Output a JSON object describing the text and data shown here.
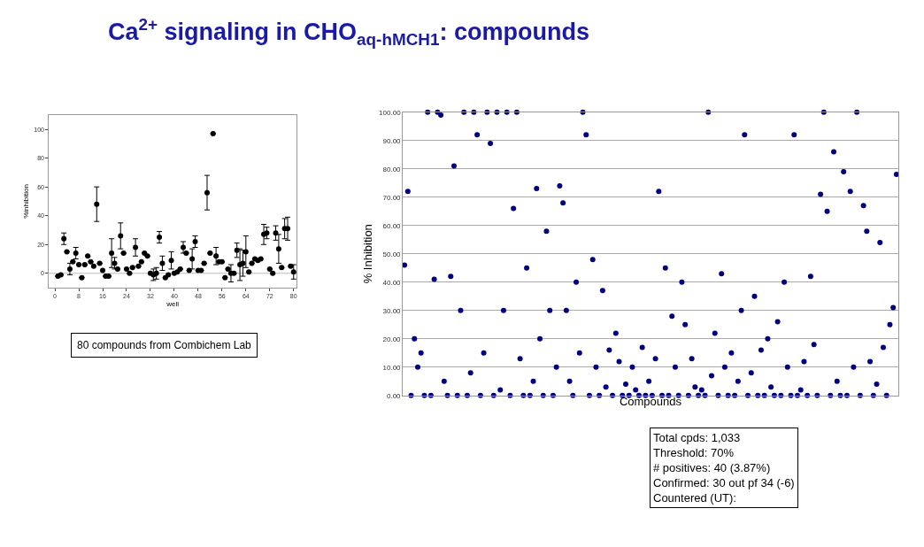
{
  "chart_data": [
    {
      "type": "scatter",
      "title": "Ca$^{2+}$ signaling in CHO$_{aq-hMCH1}$: compounds",
      "xlabel": "well",
      "ylabel": "%inhibition",
      "marker": "circle",
      "x": [
        1,
        2,
        3,
        4,
        5,
        6,
        7,
        8,
        9,
        10,
        11,
        12,
        13,
        14,
        15,
        16,
        17,
        18,
        19,
        20,
        21,
        22,
        23,
        24,
        25,
        26,
        27,
        28,
        29,
        30,
        31,
        32,
        33,
        34,
        35,
        36,
        37,
        38,
        39,
        40,
        41,
        42,
        43,
        44,
        45,
        46,
        47,
        48,
        49,
        50,
        51,
        52,
        53,
        54,
        55,
        56,
        57,
        58,
        59,
        60,
        61,
        62,
        63,
        64,
        65,
        66,
        67,
        68,
        69,
        70,
        71,
        72,
        73,
        74,
        75,
        76,
        77,
        78,
        79,
        80
      ],
      "series": [
        {
          "color": "#000000",
          "values": [
            -2,
            -1,
            24,
            15,
            3,
            8,
            14,
            6,
            -3,
            6,
            12,
            8,
            5,
            48,
            7,
            2,
            -2,
            -2,
            14,
            7,
            3,
            26,
            14,
            3,
            0,
            4,
            18,
            5,
            8,
            14,
            12,
            0,
            -1,
            0,
            25,
            7,
            -3,
            -1,
            9,
            0,
            1,
            3,
            18,
            14,
            2,
            10,
            22,
            2,
            2,
            7,
            56,
            14,
            97,
            12,
            8,
            8,
            -3,
            3,
            0,
            0,
            16,
            6,
            7,
            15,
            1,
            7,
            10,
            9,
            10,
            27,
            28,
            3,
            0,
            28,
            17,
            4,
            31,
            31,
            5,
            1
          ],
          "errors": [
            null,
            null,
            4,
            null,
            4,
            null,
            4,
            null,
            null,
            null,
            null,
            null,
            null,
            12,
            null,
            null,
            null,
            null,
            10,
            4,
            null,
            9,
            null,
            null,
            null,
            null,
            6,
            null,
            null,
            null,
            null,
            null,
            4,
            4,
            4,
            5,
            null,
            null,
            6,
            null,
            null,
            null,
            4,
            null,
            null,
            7,
            4,
            null,
            null,
            null,
            12,
            null,
            null,
            6,
            null,
            null,
            null,
            null,
            6,
            null,
            5,
            11,
            9,
            11,
            null,
            null,
            null,
            null,
            null,
            7,
            4,
            null,
            null,
            5,
            10,
            null,
            7,
            8,
            null,
            5
          ]
        }
      ],
      "xlim": [
        -2,
        81
      ],
      "xticks": [
        0,
        8,
        16,
        24,
        32,
        40,
        48,
        56,
        64,
        72,
        80
      ],
      "ylim": [
        -10,
        110
      ],
      "yticks": [
        0,
        20,
        40,
        60,
        80,
        100
      ],
      "ref_lines": [
        {
          "axis": "y",
          "value": 0,
          "color": "#bbbbbb"
        }
      ],
      "annotations": [
        "80 compounds from Combichem Lab"
      ]
    },
    {
      "type": "scatter",
      "xlabel": "Compounds",
      "ylabel": "% Inhibition",
      "marker": "circle",
      "grid": "y",
      "tick_labels": "y",
      "categories": [
        null,
        null,
        null,
        null,
        null,
        null,
        null,
        null,
        null,
        null,
        null,
        null,
        null,
        null,
        null,
        null,
        null,
        null,
        null,
        null,
        null,
        null,
        null,
        null,
        null,
        null,
        null,
        null,
        null,
        null,
        null,
        null,
        null,
        null,
        null,
        null,
        null,
        null,
        null,
        null,
        null,
        null,
        null,
        null,
        null,
        null,
        null,
        null,
        null,
        null,
        null,
        null,
        null,
        null,
        null,
        null,
        null,
        null,
        null,
        null,
        null,
        null,
        null,
        null,
        null,
        null,
        null,
        null,
        null,
        null,
        null,
        null,
        null,
        null,
        null,
        null,
        null,
        null,
        null,
        null,
        null,
        null,
        null,
        null,
        null,
        null,
        null,
        null,
        null,
        null,
        null,
        null,
        null,
        null,
        null,
        null,
        null,
        null,
        null,
        null,
        null,
        null,
        null,
        null,
        null,
        null,
        null,
        null,
        null,
        null,
        null,
        null,
        null,
        null,
        null,
        null,
        null,
        null,
        null,
        null,
        null,
        null,
        null,
        null,
        null,
        null,
        null,
        null,
        null,
        null,
        null,
        null,
        null,
        null,
        null,
        null,
        null,
        null,
        null,
        null,
        null,
        null,
        null,
        null,
        null,
        null,
        null,
        null,
        null,
        null
      ],
      "series": [
        {
          "color": "#000080",
          "values": [
            46,
            72,
            0,
            20,
            10,
            15,
            0,
            100,
            0,
            41,
            100,
            99,
            5,
            0,
            42,
            81,
            0,
            30,
            100,
            0,
            8,
            100,
            92,
            0,
            15,
            100,
            89,
            0,
            100,
            2,
            30,
            100,
            0,
            66,
            100,
            13,
            0,
            45,
            0,
            5,
            73,
            20,
            0,
            58,
            30,
            0,
            10,
            74,
            68,
            30,
            5,
            0,
            40,
            15,
            100,
            92,
            0,
            48,
            10,
            0,
            37,
            3,
            16,
            0,
            22,
            12,
            0,
            4,
            0,
            10,
            2,
            0,
            17,
            0,
            5,
            0,
            13,
            72,
            0,
            45,
            0,
            28,
            10,
            0,
            40,
            25,
            0,
            13,
            3,
            0,
            2,
            0,
            100,
            7,
            22,
            0,
            43,
            10,
            0,
            15,
            0,
            5,
            30,
            92,
            0,
            8,
            35,
            0,
            16,
            0,
            20,
            3,
            0,
            26,
            0,
            40,
            10,
            0,
            92,
            0,
            2,
            12,
            0,
            42,
            18,
            0,
            71,
            100,
            65,
            0,
            86,
            5,
            0,
            79,
            0,
            72,
            10,
            100,
            0,
            67,
            58,
            12,
            0,
            4,
            54,
            17,
            0,
            25,
            31,
            78
          ]
        }
      ],
      "ylim": [
        0,
        100
      ],
      "yticks": [
        {
          "value": 0,
          "label": "0.00"
        },
        {
          "value": 10,
          "label": "10.00"
        },
        {
          "value": 20,
          "label": "20.00"
        },
        {
          "value": 30,
          "label": "30.00"
        },
        {
          "value": 40,
          "label": "40.00"
        },
        {
          "value": 50,
          "label": "50.00"
        },
        {
          "value": 60,
          "label": "60.00"
        },
        {
          "value": 70,
          "label": "70.00"
        },
        {
          "value": 80,
          "label": "80.00"
        },
        {
          "value": 90,
          "label": "90.00"
        },
        {
          "value": 100,
          "label": "100.00"
        }
      ],
      "annotations": [
        "Total cpds: 1,033",
        "Threshold: 70%",
        "# positives: 40 (3.87%)",
        "Confirmed: 30 out pf 34 (-6)",
        "Countered (UT):"
      ]
    }
  ]
}
